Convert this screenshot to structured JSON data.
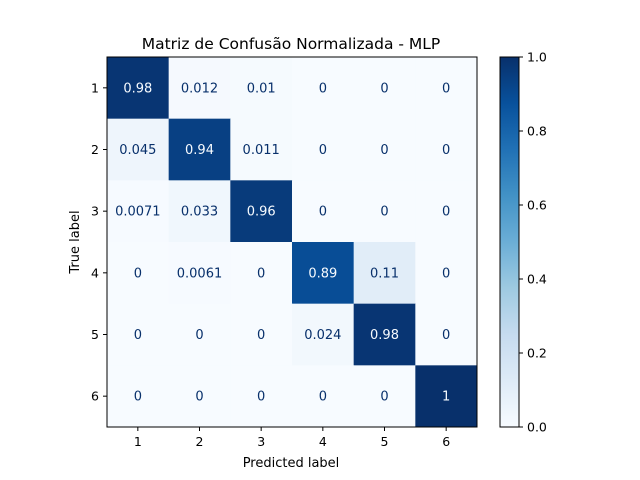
{
  "chart_data": {
    "type": "heatmap",
    "title": "Matriz de Confusão Normalizada - MLP",
    "xlabel": "Predicted label",
    "ylabel": "True label",
    "x_categories": [
      "1",
      "2",
      "3",
      "4",
      "5",
      "6"
    ],
    "y_categories": [
      "1",
      "2",
      "3",
      "4",
      "5",
      "6"
    ],
    "values": [
      [
        0.98,
        0.012,
        0.01,
        0,
        0,
        0
      ],
      [
        0.045,
        0.94,
        0.011,
        0,
        0,
        0
      ],
      [
        0.0071,
        0.033,
        0.96,
        0,
        0,
        0
      ],
      [
        0,
        0.0061,
        0,
        0.89,
        0.11,
        0
      ],
      [
        0,
        0,
        0,
        0.024,
        0.98,
        0
      ],
      [
        0,
        0,
        0,
        0,
        0,
        1
      ]
    ],
    "value_labels": [
      [
        "0.98",
        "0.012",
        "0.01",
        "0",
        "0",
        "0"
      ],
      [
        "0.045",
        "0.94",
        "0.011",
        "0",
        "0",
        "0"
      ],
      [
        "0.0071",
        "0.033",
        "0.96",
        "0",
        "0",
        "0"
      ],
      [
        "0",
        "0.0061",
        "0",
        "0.89",
        "0.11",
        "0"
      ],
      [
        "0",
        "0",
        "0",
        "0.024",
        "0.98",
        "0"
      ],
      [
        "0",
        "0",
        "0",
        "0",
        "0",
        "1"
      ]
    ],
    "colormap": "Blues",
    "color_range": [
      0.0,
      1.0
    ],
    "colorbar_ticks": [
      "0.0",
      "0.2",
      "0.4",
      "0.6",
      "0.8",
      "1.0"
    ],
    "grid": false,
    "legend": "colorbar-right"
  }
}
